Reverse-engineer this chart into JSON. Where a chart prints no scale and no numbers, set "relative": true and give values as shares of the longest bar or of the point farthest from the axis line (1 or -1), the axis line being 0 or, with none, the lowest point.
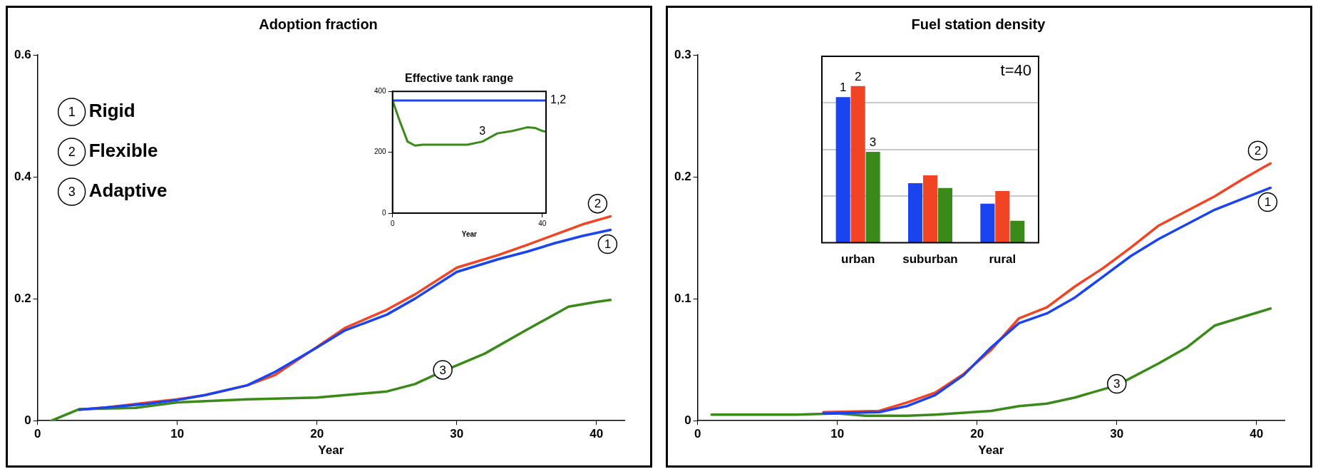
{
  "chart_data": [
    {
      "type": "line",
      "title": "Adoption fraction",
      "xlabel": "Year",
      "xlim": [
        0,
        42
      ],
      "xticks": [
        0,
        10,
        20,
        30,
        40
      ],
      "ylim": [
        0,
        0.6
      ],
      "yticks": [
        0,
        0.2,
        0.4,
        0.6
      ],
      "line_style": "solid",
      "annotations": [
        "Rigid",
        "Flexible",
        "Adaptive"
      ],
      "series": [
        {
          "name": "1",
          "color": "#1a44f0",
          "x": [
            3,
            5,
            8,
            10,
            12,
            15,
            17,
            20,
            22,
            25,
            27,
            30,
            33,
            35,
            37,
            39,
            41
          ],
          "values": [
            0.018,
            0.022,
            0.028,
            0.034,
            0.042,
            0.058,
            0.08,
            0.12,
            0.148,
            0.174,
            0.2,
            0.244,
            0.265,
            0.277,
            0.291,
            0.303,
            0.313
          ]
        },
        {
          "name": "2",
          "color": "#f04424",
          "x": [
            3,
            5,
            8,
            10,
            12,
            15,
            17,
            20,
            22,
            25,
            27,
            30,
            33,
            35,
            37,
            39,
            41
          ],
          "values": [
            0.018,
            0.022,
            0.03,
            0.035,
            0.042,
            0.058,
            0.075,
            0.121,
            0.152,
            0.182,
            0.207,
            0.251,
            0.272,
            0.288,
            0.305,
            0.322,
            0.335
          ]
        },
        {
          "name": "3",
          "color": "#3a8a1a",
          "x": [
            1,
            3,
            7,
            10,
            15,
            20,
            25,
            27,
            29,
            32,
            35,
            38,
            40,
            41
          ],
          "values": [
            0,
            0.019,
            0.021,
            0.03,
            0.035,
            0.038,
            0.048,
            0.06,
            0.081,
            0.11,
            0.149,
            0.187,
            0.195,
            0.198
          ]
        }
      ]
    },
    {
      "type": "line",
      "title": "Effective tank range",
      "xlabel": "Year",
      "xlim": [
        0,
        41
      ],
      "xticks": [
        0,
        40
      ],
      "ylim": [
        0,
        400
      ],
      "yticks": [
        0,
        200,
        400
      ],
      "line_style": "solid",
      "series": [
        {
          "name": "1,2",
          "color": "#1a44f0",
          "x": [
            0,
            41
          ],
          "values": [
            370,
            370
          ]
        },
        {
          "name": "3",
          "color": "#3a8a1a",
          "x": [
            0,
            2,
            4,
            6,
            8,
            20,
            24,
            28,
            32,
            36,
            38,
            40,
            41
          ],
          "values": [
            370,
            300,
            235,
            222,
            225,
            225,
            235,
            262,
            270,
            282,
            280,
            270,
            268
          ]
        }
      ]
    },
    {
      "type": "line",
      "title": "Fuel station density",
      "xlabel": "Year",
      "xlim": [
        0,
        42
      ],
      "xticks": [
        0,
        10,
        20,
        30,
        40
      ],
      "ylim": [
        0,
        0.3
      ],
      "yticks": [
        0,
        0.1,
        0.2,
        0.3
      ],
      "line_style": "solid",
      "series": [
        {
          "name": "1",
          "color": "#1a44f0",
          "x": [
            9,
            13,
            15,
            17,
            19,
            21,
            23,
            25,
            27,
            29,
            31,
            33,
            35,
            37,
            39,
            41
          ],
          "values": [
            0.006,
            0.007,
            0.012,
            0.021,
            0.037,
            0.06,
            0.08,
            0.088,
            0.101,
            0.118,
            0.135,
            0.149,
            0.161,
            0.173,
            0.182,
            0.191
          ]
        },
        {
          "name": "2",
          "color": "#f04424",
          "x": [
            9,
            13,
            15,
            17,
            19,
            21,
            23,
            25,
            27,
            29,
            31,
            33,
            35,
            37,
            39,
            41
          ],
          "values": [
            0.007,
            0.008,
            0.015,
            0.023,
            0.038,
            0.058,
            0.084,
            0.093,
            0.11,
            0.125,
            0.142,
            0.16,
            0.172,
            0.184,
            0.198,
            0.211
          ]
        },
        {
          "name": "3",
          "color": "#3a8a1a",
          "x": [
            1,
            7,
            10,
            12,
            15,
            17,
            21,
            23,
            25,
            27,
            30,
            33,
            35,
            37,
            39,
            41
          ],
          "values": [
            0.005,
            0.005,
            0.006,
            0.004,
            0.004,
            0.005,
            0.008,
            0.012,
            0.014,
            0.019,
            0.029,
            0.047,
            0.06,
            0.078,
            0.085,
            0.092
          ]
        }
      ]
    },
    {
      "type": "bar",
      "relative": true,
      "grid": "y",
      "categories": [
        "urban",
        "suburban",
        "rural"
      ],
      "annotations": [
        "t=40"
      ],
      "series": [
        {
          "name": "1",
          "color": "#1a44f0",
          "values": [
            0.93,
            0.38,
            0.25
          ]
        },
        {
          "name": "2",
          "color": "#f04424",
          "values": [
            1,
            0.43,
            0.33
          ]
        },
        {
          "name": "3",
          "color": "#3a8a1a",
          "values": [
            0.58,
            0.35,
            0.14
          ]
        }
      ]
    }
  ]
}
